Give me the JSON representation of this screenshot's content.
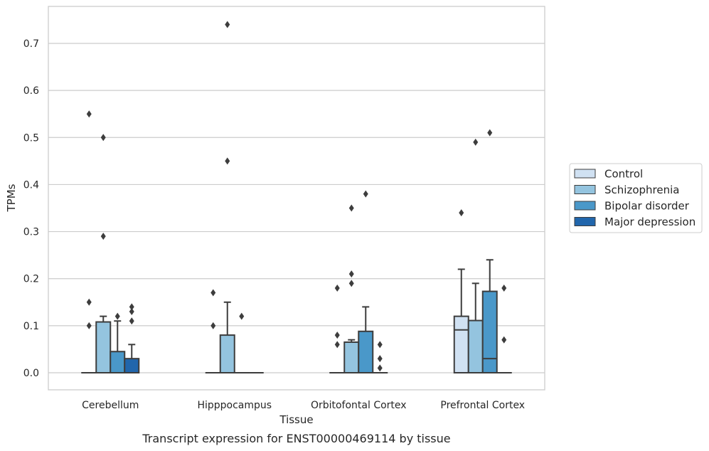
{
  "chart_data": {
    "type": "box",
    "title": "",
    "caption": "Transcript expression for ENST00000469114 by tissue",
    "xlabel": "Tissue",
    "ylabel": "TPMs",
    "ylim": [
      -0.035,
      0.78
    ],
    "yticks": [
      0.0,
      0.1,
      0.2,
      0.3,
      0.4,
      0.5,
      0.6,
      0.7
    ],
    "ytick_labels": [
      "0.0",
      "0.1",
      "0.2",
      "0.3",
      "0.4",
      "0.5",
      "0.6",
      "0.7"
    ],
    "grid": "horizontal",
    "legend_position": "right",
    "categories": [
      "Cerebellum",
      "Hipppocampus",
      "Orbitofontal Cortex",
      "Prefrontal Cortex"
    ],
    "series": [
      {
        "name": "Control",
        "color": "#d0e1f2",
        "boxes": [
          {
            "q1": 0,
            "median": 0,
            "q3": 0,
            "whisker_low": 0,
            "whisker_high": 0,
            "outliers": [
              0.1,
              0.15,
              0.55
            ]
          },
          {
            "q1": 0,
            "median": 0,
            "q3": 0,
            "whisker_low": 0,
            "whisker_high": 0,
            "outliers": [
              0.1,
              0.17
            ]
          },
          {
            "q1": 0,
            "median": 0,
            "q3": 0,
            "whisker_low": 0,
            "whisker_high": 0,
            "outliers": [
              0.06,
              0.08,
              0.18
            ]
          },
          {
            "q1": 0,
            "median": 0.091,
            "q3": 0.12,
            "whisker_low": 0,
            "whisker_high": 0.22,
            "outliers": [
              0.34
            ]
          }
        ]
      },
      {
        "name": "Schizophrenia",
        "color": "#94c4df",
        "boxes": [
          {
            "q1": 0,
            "median": 0,
            "q3": 0.108,
            "whisker_low": 0,
            "whisker_high": 0.12,
            "outliers": [
              0.29,
              0.5
            ]
          },
          {
            "q1": 0,
            "median": 0,
            "q3": 0.08,
            "whisker_low": 0,
            "whisker_high": 0.15,
            "outliers": [
              0.45,
              0.74
            ]
          },
          {
            "q1": 0,
            "median": 0,
            "q3": 0.065,
            "whisker_low": 0,
            "whisker_high": 0.07,
            "outliers": [
              0.19,
              0.21,
              0.35
            ]
          },
          {
            "q1": 0,
            "median": 0,
            "q3": 0.111,
            "whisker_low": 0,
            "whisker_high": 0.19,
            "outliers": [
              0.49
            ]
          }
        ]
      },
      {
        "name": "Bipolar disorder",
        "color": "#4a98c9",
        "boxes": [
          {
            "q1": 0,
            "median": 0,
            "q3": 0.045,
            "whisker_low": 0,
            "whisker_high": 0.11,
            "outliers": [
              0.12
            ]
          },
          {
            "q1": 0,
            "median": 0,
            "q3": 0,
            "whisker_low": 0,
            "whisker_high": 0,
            "outliers": [
              0.12
            ]
          },
          {
            "q1": 0,
            "median": 0,
            "q3": 0.088,
            "whisker_low": 0,
            "whisker_high": 0.14,
            "outliers": [
              0.38
            ]
          },
          {
            "q1": 0,
            "median": 0.03,
            "q3": 0.173,
            "whisker_low": 0,
            "whisker_high": 0.24,
            "outliers": [
              0.51
            ]
          }
        ]
      },
      {
        "name": "Major depression",
        "color": "#2166ac",
        "boxes": [
          {
            "q1": 0,
            "median": 0,
            "q3": 0.03,
            "whisker_low": 0,
            "whisker_high": 0.06,
            "outliers": [
              0.11,
              0.13,
              0.14
            ]
          },
          {
            "q1": 0,
            "median": 0,
            "q3": 0,
            "whisker_low": 0,
            "whisker_high": 0,
            "outliers": []
          },
          {
            "q1": 0,
            "median": 0,
            "q3": 0,
            "whisker_low": 0,
            "whisker_high": 0,
            "outliers": [
              0.01,
              0.03,
              0.06
            ]
          },
          {
            "q1": 0,
            "median": 0,
            "q3": 0,
            "whisker_low": 0,
            "whisker_high": 0,
            "outliers": [
              0.07,
              0.18
            ]
          }
        ]
      }
    ]
  }
}
